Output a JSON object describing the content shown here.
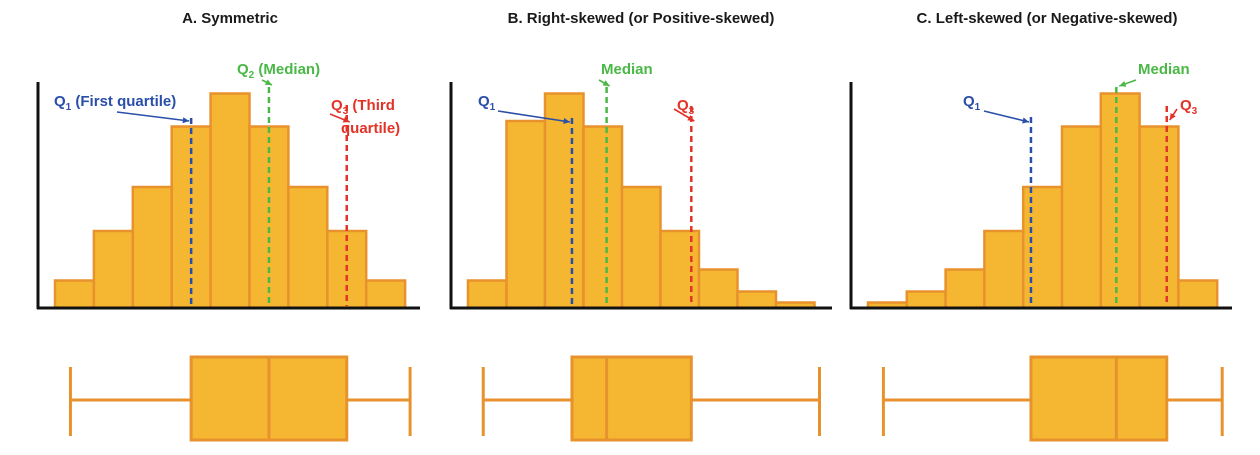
{
  "chart_data": [
    {
      "type": "bar",
      "title": "A. Symmetric",
      "values": [
        5,
        14,
        22,
        33,
        39,
        33,
        22,
        14,
        5
      ],
      "ylim": [
        0,
        40
      ],
      "colors": {
        "bar": "#f5b731",
        "bar_edge": "#e8922d",
        "q1": "#2a4fa8",
        "median": "#4ab847",
        "q3": "#e33227",
        "box": "#f5b731"
      },
      "quartiles": {
        "q1": 3.5,
        "median": 5.5,
        "q3": 7.5
      },
      "whiskers": [
        0.5,
        9.0
      ],
      "annotations": {
        "q1_label": "Q",
        "q1_sub": "1",
        "q1_rest": " (First quartile)",
        "median_label": "Q",
        "median_sub": "2",
        "median_rest": " (Median)",
        "q3_label": "Q",
        "q3_sub": "3",
        "q3_rest": " (Third",
        "q3_rest2": "quartile)"
      }
    },
    {
      "type": "bar",
      "title": "B. Right-skewed (or Positive-skewed)",
      "values": [
        5,
        34,
        39,
        33,
        22,
        14,
        7,
        3,
        1
      ],
      "ylim": [
        0,
        40
      ],
      "colors": {
        "bar": "#f5b731",
        "bar_edge": "#e8922d",
        "q1": "#2a4fa8",
        "median": "#4ab847",
        "q3": "#e33227",
        "box": "#f5b731"
      },
      "quartiles": {
        "q1": 2.7,
        "median": 3.6,
        "q3": 5.8
      },
      "whiskers": [
        0.5,
        9.0
      ],
      "annotations": {
        "q1_label": "Q",
        "q1_sub": "1",
        "median_label": "Median",
        "q3_label": "Q",
        "q3_sub": "3"
      }
    },
    {
      "type": "bar",
      "title": "C. Left-skewed (or Negative-skewed)",
      "values": [
        1,
        3,
        7,
        14,
        22,
        33,
        39,
        33,
        5
      ],
      "ylim": [
        0,
        40
      ],
      "colors": {
        "bar": "#f5b731",
        "bar_edge": "#e8922d",
        "q1": "#2a4fa8",
        "median": "#4ab847",
        "q3": "#e33227",
        "box": "#f5b731"
      },
      "quartiles": {
        "q1": 4.2,
        "median": 6.4,
        "q3": 7.7
      },
      "whiskers": [
        0.5,
        9.0
      ],
      "annotations": {
        "q1_label": "Q",
        "q1_sub": "1",
        "median_label": "Median",
        "q3_label": "Q",
        "q3_sub": "3"
      }
    }
  ]
}
